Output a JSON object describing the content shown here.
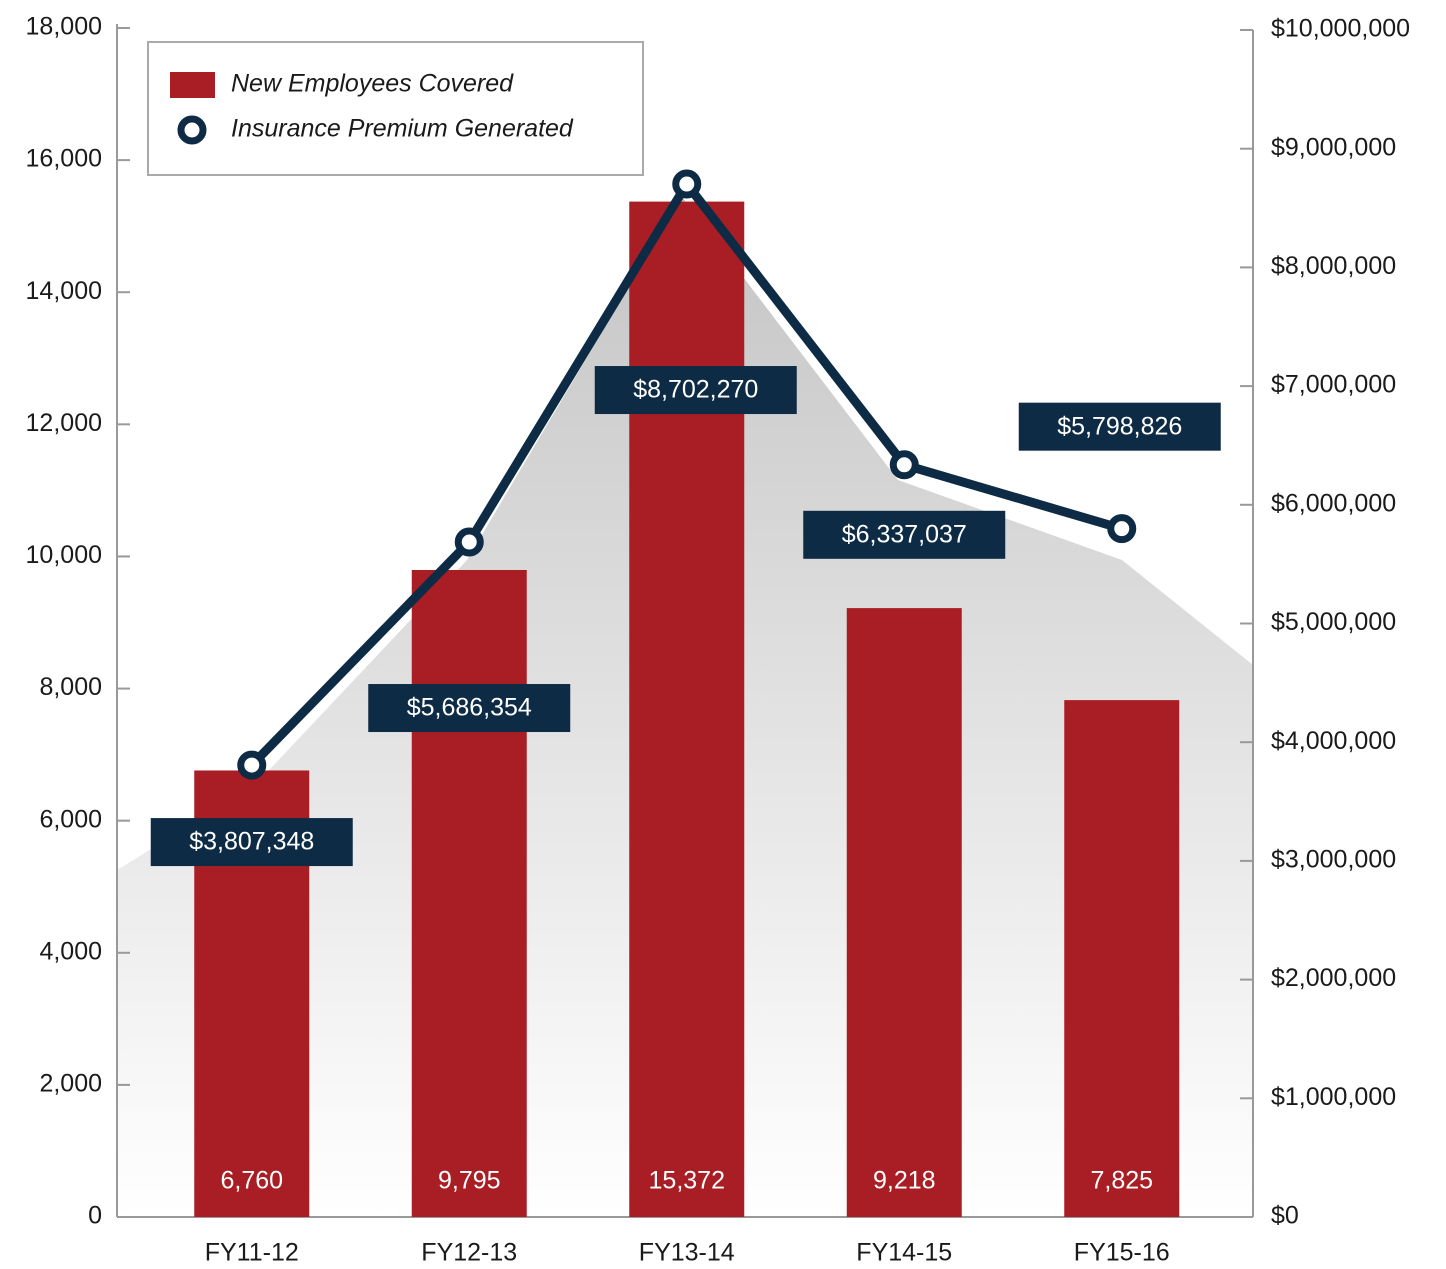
{
  "chart_data": {
    "type": "bar-line",
    "categories": [
      "FY11-12",
      "FY12-13",
      "FY13-14",
      "FY14-15",
      "FY15-16"
    ],
    "series": [
      {
        "name": "New Employees Covered",
        "type": "bar",
        "color": "#a91e24",
        "values": [
          6760,
          9795,
          15372,
          9218,
          7825
        ],
        "value_labels": [
          "6,760",
          "9,795",
          "15,372",
          "9,218",
          "7,825"
        ]
      },
      {
        "name": "Insurance Premium Generated",
        "type": "line",
        "axis": "y2",
        "color": "#0d2b45",
        "values": [
          3807348,
          5686354,
          8702270,
          6337037,
          5798826
        ],
        "value_labels": [
          "$3,807,348",
          "$5,686,354",
          "$8,702,270",
          "$6,337,037",
          "$5,798,826"
        ]
      }
    ],
    "ylim": [
      0,
      18000
    ],
    "yticks": [
      0,
      {
        "value": 2000,
        "label": "2,000"
      },
      {
        "value": 4000,
        "label": "4,000"
      },
      {
        "value": 6000,
        "label": "6,000"
      },
      {
        "value": 8000,
        "label": "8,000"
      },
      {
        "value": 10000,
        "label": "10,000"
      },
      {
        "value": 12000,
        "label": "12,000"
      },
      {
        "value": 14000,
        "label": "14,000"
      },
      {
        "value": 16000,
        "label": "16,000"
      },
      {
        "value": 18000,
        "label": "18,000"
      }
    ],
    "y2lim": [
      0,
      10000000
    ],
    "y2ticks": [
      {
        "value": 0,
        "label": "$0"
      },
      {
        "value": 1000000,
        "label": "$1,000,000"
      },
      {
        "value": 2000000,
        "label": "$2,000,000"
      },
      {
        "value": 3000000,
        "label": "$3,000,000"
      },
      {
        "value": 4000000,
        "label": "$4,000,000"
      },
      {
        "value": 5000000,
        "label": "$5,000,000"
      },
      {
        "value": 6000000,
        "label": "$6,000,000"
      },
      {
        "value": 7000000,
        "label": "$7,000,000"
      },
      {
        "value": 8000000,
        "label": "$8,000,000"
      },
      {
        "value": 9000000,
        "label": "$9,000,000"
      },
      {
        "value": 10000000,
        "label": "$10,000,000"
      }
    ],
    "legend": "upper left"
  }
}
